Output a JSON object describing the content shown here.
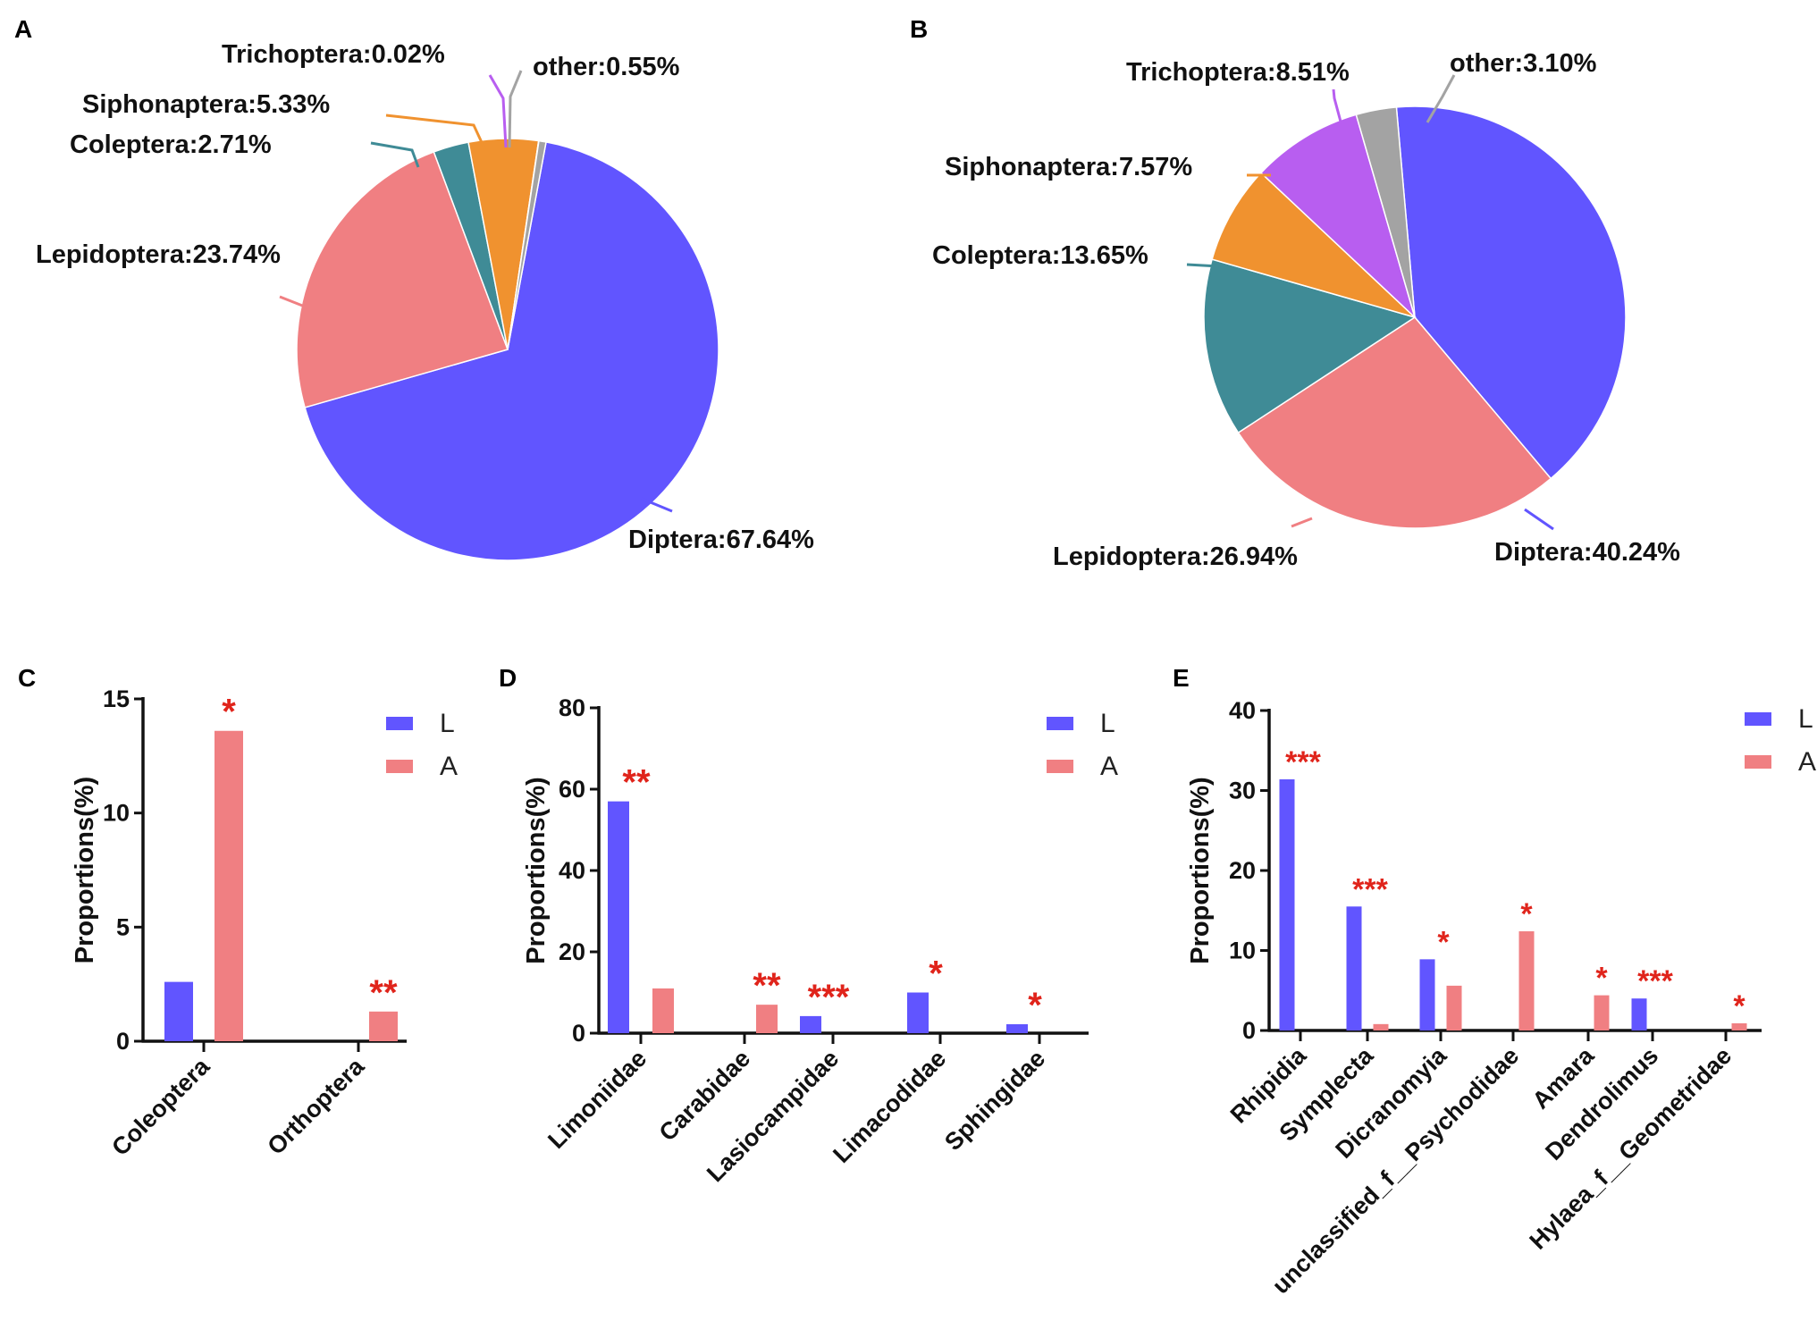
{
  "colors": {
    "Diptera": "#6155ff",
    "Lepidoptera": "#f07f82",
    "Coleptera": "#3f8b96",
    "Siphonaptera": "#f0922f",
    "Trichoptera": "#b85ef0",
    "other": "#a3a3a3",
    "L": "#6155ff",
    "A": "#f07f82",
    "sig": "#e0241b"
  },
  "chart_data": [
    {
      "panel": "A",
      "type": "pie",
      "slices": [
        {
          "name": "Diptera",
          "value": 67.64,
          "label": "Diptera:67.64%"
        },
        {
          "name": "Lepidoptera",
          "value": 23.74,
          "label": "Lepidoptera:23.74%"
        },
        {
          "name": "Coleptera",
          "value": 2.71,
          "label": "Coleptera:2.71%"
        },
        {
          "name": "Siphonaptera",
          "value": 5.33,
          "label": "Siphonaptera:5.33%"
        },
        {
          "name": "Trichoptera",
          "value": 0.02,
          "label": "Trichoptera:0.02%"
        },
        {
          "name": "other",
          "value": 0.55,
          "label": "other:0.55%"
        }
      ]
    },
    {
      "panel": "B",
      "type": "pie",
      "slices": [
        {
          "name": "Diptera",
          "value": 40.24,
          "label": "Diptera:40.24%"
        },
        {
          "name": "Lepidoptera",
          "value": 26.94,
          "label": "Lepidoptera:26.94%"
        },
        {
          "name": "Coleptera",
          "value": 13.65,
          "label": "Coleptera:13.65%"
        },
        {
          "name": "Siphonaptera",
          "value": 7.57,
          "label": "Siphonaptera:7.57%"
        },
        {
          "name": "Trichoptera",
          "value": 8.51,
          "label": "Trichoptera:8.51%"
        },
        {
          "name": "other",
          "value": 3.1,
          "label": "other:3.10%"
        }
      ]
    },
    {
      "panel": "C",
      "type": "bar",
      "ylabel": "Proportions(%)",
      "ylim": [
        0,
        15
      ],
      "yticks": [
        0,
        5,
        10,
        15
      ],
      "legend": [
        "L",
        "A"
      ],
      "categories": [
        "Coleoptera",
        "Orthoptera"
      ],
      "series": [
        {
          "name": "L",
          "values": [
            2.6,
            0
          ]
        },
        {
          "name": "A",
          "values": [
            13.6,
            1.3
          ]
        }
      ],
      "significance": [
        "*",
        "**"
      ]
    },
    {
      "panel": "D",
      "type": "bar",
      "ylabel": "Proportions(%)",
      "ylim": [
        0,
        80
      ],
      "yticks": [
        0,
        20,
        40,
        60,
        80
      ],
      "legend": [
        "L",
        "A"
      ],
      "categories": [
        "Limoniidae",
        "Carabidae",
        "Lasiocampidae",
        "Limacodidae",
        "Sphingidae"
      ],
      "series": [
        {
          "name": "L",
          "values": [
            57,
            0,
            4.2,
            10,
            2.2
          ]
        },
        {
          "name": "A",
          "values": [
            11,
            7,
            0,
            0,
            0
          ]
        }
      ],
      "significance": [
        "**",
        "**",
        "***",
        "*",
        "*"
      ]
    },
    {
      "panel": "E",
      "type": "bar",
      "ylabel": "Proportions(%)",
      "ylim": [
        0,
        40
      ],
      "yticks": [
        0,
        10,
        20,
        30,
        40
      ],
      "legend": [
        "L",
        "A"
      ],
      "categories": [
        "Rhipidia",
        "Symplecta",
        "Dicranomyia",
        "unclassified_f__Psychodidae",
        "Amara",
        "Dendrolimus",
        "Hylaea_f__Geometridae"
      ],
      "series": [
        {
          "name": "L",
          "values": [
            31.4,
            15.5,
            8.9,
            0,
            0,
            4,
            0
          ]
        },
        {
          "name": "A",
          "values": [
            0,
            0.8,
            5.6,
            12.4,
            4.4,
            0,
            0.9
          ]
        }
      ],
      "significance": [
        "***",
        "***",
        "*",
        "*",
        "*",
        "***",
        "*"
      ]
    }
  ]
}
